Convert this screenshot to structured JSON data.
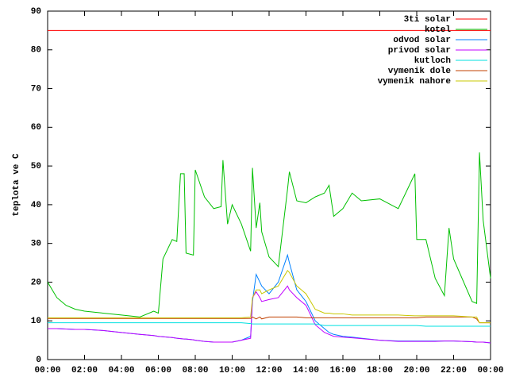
{
  "chart_data": {
    "type": "line",
    "y_label": "teplota ve C",
    "legend": "top-right",
    "grid": false,
    "x": [
      0,
      0.5,
      1,
      1.5,
      2,
      3,
      4,
      5,
      5.75,
      6,
      6.25,
      6.75,
      7,
      7.2,
      7.4,
      7.5,
      7.9,
      8,
      8.5,
      9,
      9.4,
      9.5,
      9.75,
      10,
      10.5,
      11,
      11.1,
      11.3,
      11.5,
      11.6,
      12,
      12.5,
      13,
      13.1,
      13.5,
      14,
      14.5,
      15,
      15.25,
      15.5,
      16,
      16.5,
      17,
      18,
      19,
      19.9,
      20,
      20.5,
      21,
      21.5,
      21.75,
      22,
      23,
      23.25,
      23.4,
      23.6,
      24
    ],
    "xlim": [
      0,
      24
    ],
    "xticks": [
      {
        "value": 0,
        "label": "00:00"
      },
      {
        "value": 2,
        "label": "02:00"
      },
      {
        "value": 4,
        "label": "04:00"
      },
      {
        "value": 6,
        "label": "06:00"
      },
      {
        "value": 8,
        "label": "08:00"
      },
      {
        "value": 10,
        "label": "10:00"
      },
      {
        "value": 12,
        "label": "12:00"
      },
      {
        "value": 14,
        "label": "14:00"
      },
      {
        "value": 16,
        "label": "16:00"
      },
      {
        "value": 18,
        "label": "18:00"
      },
      {
        "value": 20,
        "label": "20:00"
      },
      {
        "value": 22,
        "label": "22:00"
      },
      {
        "value": 24,
        "label": "00:00"
      }
    ],
    "ylim": [
      0,
      90
    ],
    "yticks": [
      0,
      10,
      20,
      30,
      40,
      50,
      60,
      70,
      80,
      90
    ],
    "series": [
      {
        "name": "3ti solar",
        "color": "#ff0000",
        "values": [
          85,
          85,
          85,
          85,
          85,
          85,
          85,
          85,
          85,
          85,
          85,
          85,
          85,
          85,
          85,
          85,
          85,
          85,
          85,
          85,
          85,
          85,
          85,
          85,
          85,
          85,
          85,
          85,
          85,
          85,
          85,
          85,
          85,
          85,
          85,
          85,
          85,
          85,
          85,
          85,
          85,
          85,
          85,
          85,
          85,
          85,
          85,
          85,
          85,
          85,
          85,
          85,
          85,
          85,
          85,
          85,
          85
        ]
      },
      {
        "name": "kotel",
        "color": "#00c000",
        "values": [
          20,
          16,
          14,
          13,
          12.5,
          12,
          11.5,
          11,
          12.5,
          12,
          26,
          31,
          30.5,
          48,
          48,
          27.5,
          27,
          49,
          42,
          39,
          39.5,
          51.5,
          35,
          40,
          35,
          28,
          49.5,
          34,
          40.5,
          33,
          26.5,
          24,
          44,
          48.5,
          41,
          40.5,
          42,
          43,
          45,
          37,
          39,
          43,
          41,
          41.5,
          39,
          48,
          31,
          31,
          21,
          16.5,
          34,
          26,
          15,
          14.5,
          53.5,
          36,
          21
        ]
      },
      {
        "name": "odvod solar",
        "color": "#0080ff",
        "values": [
          8,
          8,
          7.9,
          7.8,
          7.8,
          7.5,
          7,
          6.5,
          6.2,
          6,
          5.9,
          5.7,
          5.5,
          5.4,
          5.3,
          5.3,
          5.1,
          5,
          4.7,
          4.5,
          4.5,
          4.5,
          4.5,
          4.5,
          5,
          6,
          15,
          22,
          20,
          19,
          17,
          20,
          27,
          25,
          18,
          15,
          10,
          8,
          7,
          6.5,
          6,
          5.8,
          5.5,
          5,
          4.8,
          4.8,
          4.8,
          4.8,
          4.8,
          4.8,
          4.8,
          4.8,
          4.6,
          4.5,
          4.5,
          4.5,
          4.3
        ]
      },
      {
        "name": "privod solar",
        "color": "#c000ff",
        "values": [
          8,
          8,
          7.9,
          7.8,
          7.8,
          7.5,
          7,
          6.5,
          6.2,
          6,
          5.9,
          5.7,
          5.5,
          5.4,
          5.3,
          5.3,
          5.1,
          5,
          4.7,
          4.5,
          4.5,
          4.5,
          4.5,
          4.5,
          5,
          5.5,
          16,
          17.5,
          16,
          15,
          15.5,
          16,
          19,
          18,
          16,
          14,
          9,
          7,
          6.5,
          6,
          5.8,
          5.6,
          5.4,
          5,
          4.7,
          4.7,
          4.7,
          4.7,
          4.7,
          4.8,
          4.8,
          4.8,
          4.6,
          4.5,
          4.5,
          4.5,
          4.3
        ]
      },
      {
        "name": "kutloch",
        "color": "#00e0e0",
        "values": [
          9.5,
          9.5,
          9.5,
          9.5,
          9.5,
          9.5,
          9.5,
          9.5,
          9.5,
          9.5,
          9.5,
          9.5,
          9.5,
          9.5,
          9.5,
          9.5,
          9.5,
          9.5,
          9.5,
          9.5,
          9.5,
          9.5,
          9.5,
          9.5,
          9.5,
          9.3,
          9.2,
          9.2,
          9.2,
          9.2,
          9.2,
          9.2,
          9.2,
          9.2,
          9.2,
          9.2,
          9.2,
          8.8,
          8.8,
          8.8,
          8.8,
          8.8,
          8.8,
          8.8,
          8.8,
          8.8,
          8.8,
          8.6,
          8.6,
          8.6,
          8.6,
          8.6,
          8.6,
          8.6,
          8.6,
          8.6,
          8.6
        ]
      },
      {
        "name": "vymenik dole",
        "color": "#c04000",
        "values": [
          10.6,
          10.6,
          10.6,
          10.6,
          10.6,
          10.6,
          10.6,
          10.6,
          10.6,
          10.6,
          10.6,
          10.6,
          10.6,
          10.6,
          10.6,
          10.6,
          10.6,
          10.6,
          10.6,
          10.6,
          10.6,
          10.6,
          10.6,
          10.6,
          10.6,
          10.6,
          11,
          10.5,
          11,
          10.5,
          11,
          11,
          11,
          11,
          11,
          10.8,
          10.8,
          10.8,
          10.8,
          10.8,
          10.8,
          10.8,
          10.8,
          10.8,
          10.8,
          10.8,
          10.8,
          11,
          11,
          11,
          11,
          11,
          11,
          10.5,
          9.5,
          9.5,
          9.5
        ]
      },
      {
        "name": "vymenik nahore",
        "color": "#c8c800",
        "values": [
          10.8,
          10.8,
          10.8,
          10.8,
          10.8,
          10.8,
          10.8,
          10.8,
          10.8,
          10.8,
          10.8,
          10.8,
          10.8,
          10.8,
          10.8,
          10.8,
          10.8,
          10.8,
          10.8,
          10.8,
          10.8,
          10.8,
          10.8,
          10.8,
          10.8,
          11,
          16,
          18,
          18,
          17,
          18,
          19,
          23,
          22.5,
          19,
          17,
          13,
          12,
          12,
          11.8,
          11.8,
          11.5,
          11.5,
          11.5,
          11.5,
          11.3,
          11.3,
          11.3,
          11.3,
          11.3,
          11.3,
          11.3,
          11,
          11,
          9.5,
          9.5,
          9.5
        ]
      }
    ]
  }
}
